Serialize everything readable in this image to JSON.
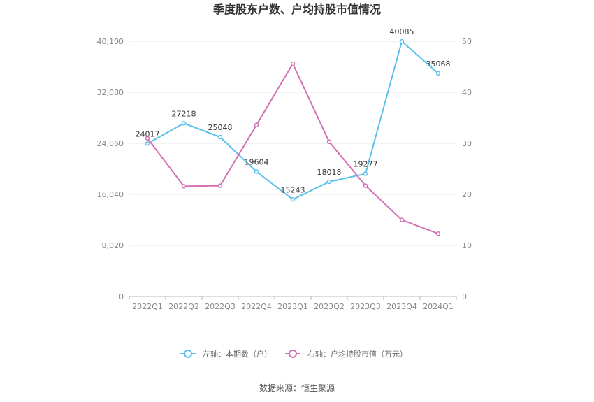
{
  "chart_data": {
    "type": "line",
    "title": "季度股东户数、户均持股市值情况",
    "categories": [
      "2022Q1",
      "2022Q2",
      "2022Q3",
      "2022Q4",
      "2023Q1",
      "2023Q2",
      "2023Q3",
      "2023Q4",
      "2024Q1"
    ],
    "series": [
      {
        "name": "左轴：本期数（户）",
        "axis": "left",
        "color": "#5bc0eb",
        "values": [
          24017,
          27218,
          25048,
          19604,
          15243,
          18018,
          19277,
          40085,
          35068
        ],
        "labels": [
          "24017",
          "27218",
          "25048",
          "19604",
          "15243",
          "18018",
          "19277",
          "40085",
          "35068"
        ]
      },
      {
        "name": "右轴：户均持股市值（万元）",
        "axis": "right",
        "color": "#d36fb5",
        "values": [
          31.0,
          21.6,
          21.7,
          33.6,
          45.6,
          30.3,
          21.7,
          15.0,
          12.3
        ]
      }
    ],
    "y_left": {
      "ticks": [
        "0",
        "8,020",
        "16,040",
        "24,060",
        "32,080",
        "40,100"
      ],
      "ylim": [
        0,
        40100
      ]
    },
    "y_right": {
      "ticks": [
        "0",
        "10",
        "20",
        "30",
        "40",
        "50"
      ],
      "ylim": [
        0,
        50
      ]
    },
    "grid": true,
    "legend_position": "bottom-center"
  },
  "source": "数据来源：恒生聚源"
}
